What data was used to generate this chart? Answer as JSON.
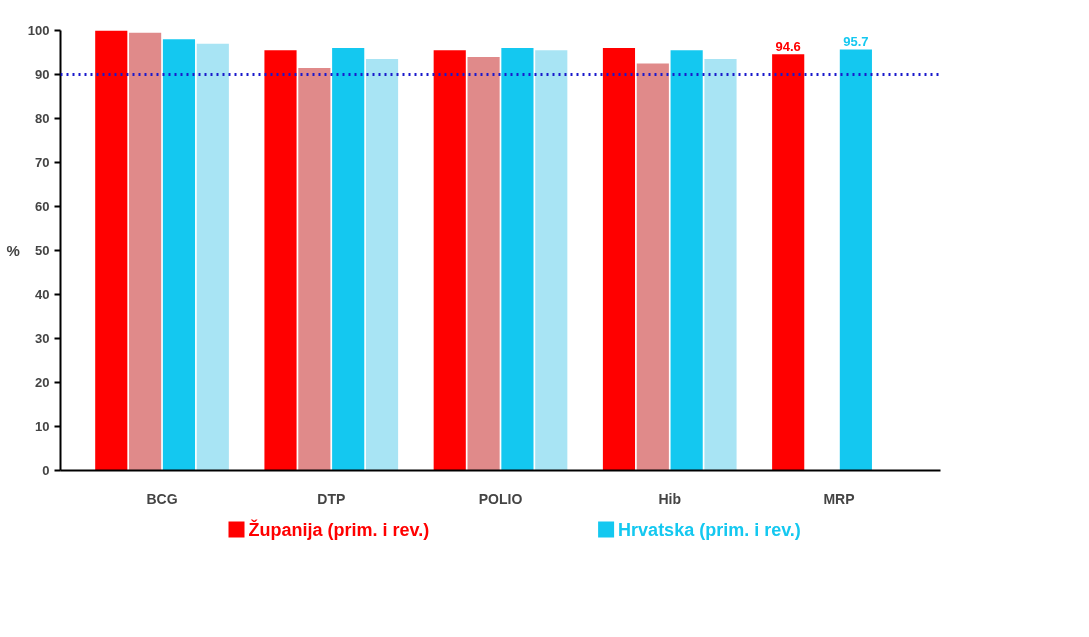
{
  "chart_data": {
    "type": "bar",
    "ylabel": "%",
    "categories": [
      "BCG",
      "DTP",
      "POLIO",
      "Hib",
      "MRP"
    ],
    "series": [
      {
        "name": "Županija (prim. i rev.)",
        "color": "#ff0000",
        "values": [
          100,
          95.5,
          95.5,
          96,
          94.6
        ],
        "value_labels": [
          null,
          null,
          null,
          null,
          "94.6"
        ]
      },
      {
        "color": "#e08a8a",
        "values": [
          99.5,
          91.5,
          94,
          92.5,
          null
        ]
      },
      {
        "name": "Hrvatska (prim. i rev.)",
        "color": "#14c8f0",
        "values": [
          98,
          96,
          96,
          95.5,
          95.7
        ],
        "value_labels": [
          null,
          null,
          null,
          null,
          "95.7"
        ]
      },
      {
        "color": "#a8e4f4",
        "values": [
          97,
          93.5,
          95.5,
          93.5,
          null
        ]
      }
    ],
    "ylim": [
      0,
      100
    ],
    "yticks": [
      0,
      10,
      20,
      30,
      40,
      50,
      60,
      70,
      80,
      90,
      100
    ],
    "ref_lines": [
      {
        "axis": "y",
        "value": 90,
        "color": "#1a1acc",
        "line_style": "dotted"
      }
    ],
    "grid": false,
    "legend": "bottom"
  }
}
